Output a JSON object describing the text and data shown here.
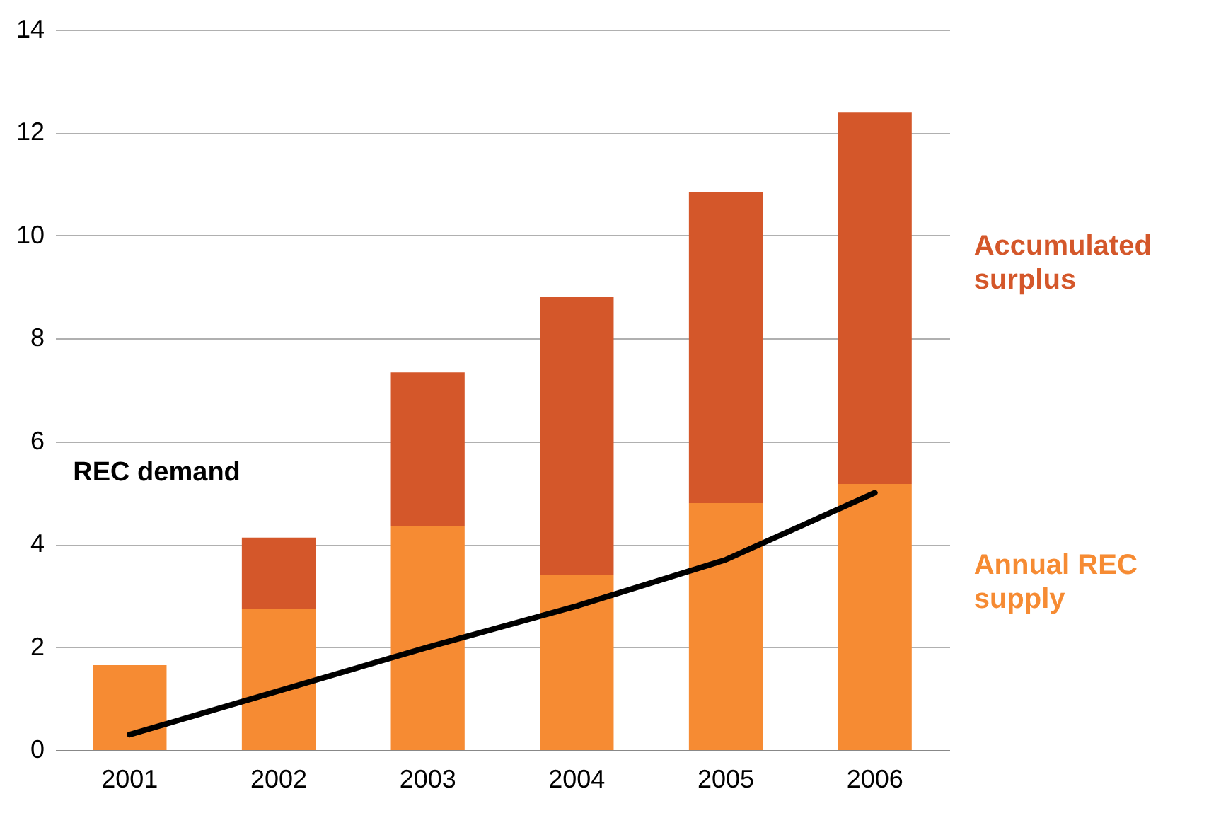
{
  "chart_data": {
    "type": "bar",
    "stacked": true,
    "categories": [
      "2001",
      "2002",
      "2003",
      "2004",
      "2005",
      "2006"
    ],
    "series": [
      {
        "name": "Annual REC supply",
        "color": "#f68b33",
        "values": [
          1.65,
          2.75,
          4.35,
          3.4,
          4.8,
          5.17
        ]
      },
      {
        "name": "Accumulated surplus",
        "color": "#d4572a",
        "values": [
          0,
          1.38,
          2.99,
          5.4,
          6.05,
          7.23
        ]
      },
      {
        "name": "REC demand",
        "type": "line",
        "color": "#000000",
        "values": [
          0.3,
          1.15,
          2.0,
          2.8,
          3.7,
          5.0
        ]
      }
    ],
    "ylim": [
      0,
      14
    ],
    "yticks": [
      0,
      2,
      4,
      6,
      8,
      10,
      12,
      14
    ],
    "grid": "y",
    "legend": false
  }
}
